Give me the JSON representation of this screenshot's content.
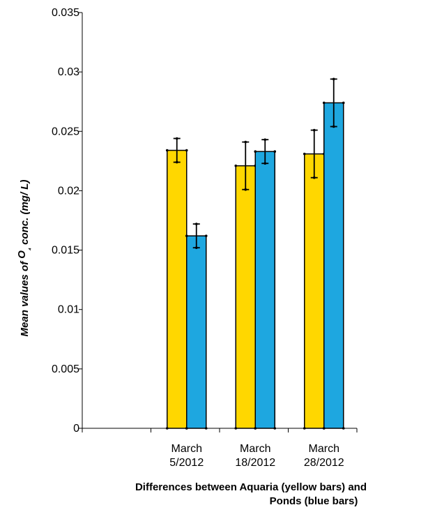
{
  "chart_data": {
    "type": "bar",
    "title": "",
    "ylabel": "Mean values of O₄ conc. (mg/ L)",
    "ylabel_parts": [
      "Mean values of ",
      "O",
      "₄",
      " conc. (mg/ L)"
    ],
    "xlabel_lines": [
      "Differences between Aquaria (yellow bars) and",
      "Ponds (blue bars)"
    ],
    "ylim": [
      0,
      0.035
    ],
    "yticks": [
      "0",
      "0.005",
      "0.01",
      "0.015",
      "0.02",
      "0.025",
      "0.03",
      "0.035"
    ],
    "ytick_values": [
      0,
      0.005,
      0.01,
      0.015,
      0.02,
      0.025,
      0.03,
      0.035
    ],
    "categories": [
      {
        "lines": [
          "",
          ""
        ]
      },
      {
        "lines": [
          "March",
          "5/2012"
        ]
      },
      {
        "lines": [
          "March",
          "18/2012"
        ]
      },
      {
        "lines": [
          "March",
          "28/2012"
        ]
      }
    ],
    "series": [
      {
        "color": "#FFD700",
        "values": [
          null,
          0.0234,
          0.0221,
          0.0231
        ],
        "errors": [
          null,
          0.001,
          0.002,
          0.002
        ]
      },
      {
        "color": "#1EA7E0",
        "values": [
          null,
          0.0162,
          0.0233,
          0.0274
        ],
        "errors": [
          null,
          0.001,
          0.001,
          0.002
        ]
      }
    ],
    "grid": false,
    "legend": "none"
  }
}
